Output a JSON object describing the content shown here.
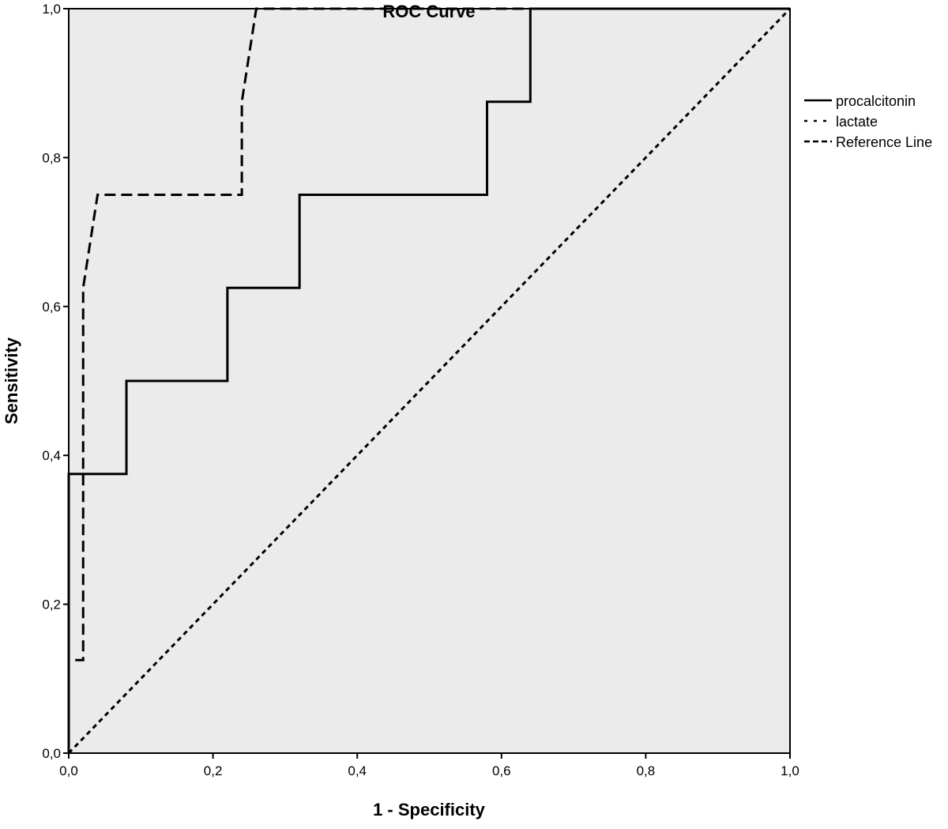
{
  "chart_data": {
    "type": "line",
    "title": "ROC Curve",
    "xlabel": "1 - Specificity",
    "ylabel": "Sensitivity",
    "xlim": [
      0,
      1
    ],
    "ylim": [
      0,
      1
    ],
    "xticks": [
      "0,0",
      "0,2",
      "0,4",
      "0,6",
      "0,8",
      "1,0"
    ],
    "yticks": [
      "0,0",
      "0,2",
      "0,4",
      "0,6",
      "0,8",
      "1,0"
    ],
    "tick_values": [
      0,
      0.2,
      0.4,
      0.6,
      0.8,
      1.0
    ],
    "grid": false,
    "legend_position": "right",
    "plot_background": "#ebebeb",
    "series": [
      {
        "name": "procalcitonin",
        "style": "solid",
        "x": [
          0,
          0,
          0.08,
          0.08,
          0.22,
          0.22,
          0.32,
          0.32,
          0.58,
          0.58,
          0.64,
          0.64,
          1.0
        ],
        "y": [
          0,
          0.375,
          0.375,
          0.5,
          0.5,
          0.625,
          0.625,
          0.75,
          0.75,
          0.875,
          0.875,
          1.0,
          1.0
        ]
      },
      {
        "name": "lactate",
        "style": "long-dash",
        "x": [
          0,
          0,
          0.02,
          0.02,
          0.04,
          0.24,
          0.24,
          0.26,
          1.0
        ],
        "y": [
          0,
          0.125,
          0.125,
          0.625,
          0.75,
          0.75,
          0.875,
          1.0,
          1.0
        ]
      },
      {
        "name": "Reference Line",
        "style": "short-dash",
        "x": [
          0,
          1
        ],
        "y": [
          0,
          1
        ]
      }
    ]
  }
}
